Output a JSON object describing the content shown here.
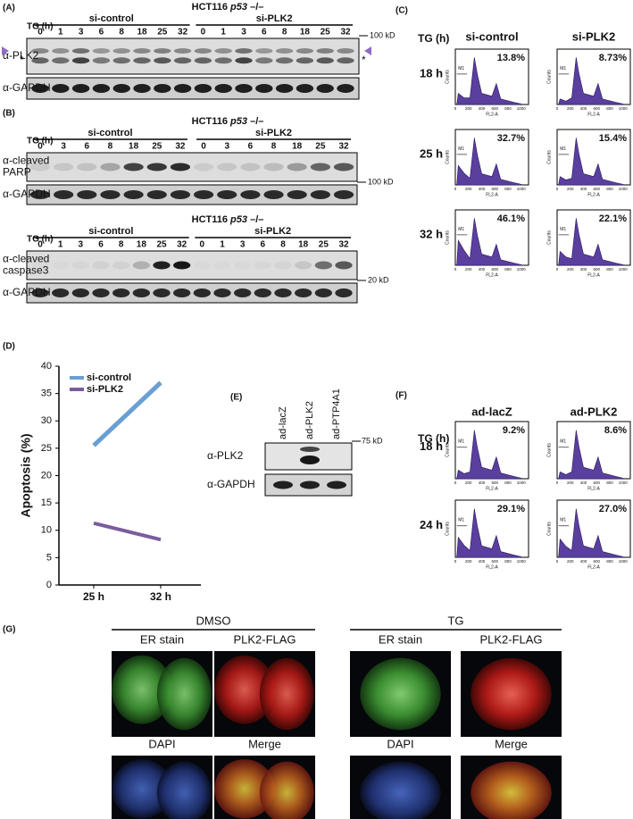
{
  "panels": {
    "A": {
      "label": "(A)",
      "title": [
        "HCT116 ",
        "p53",
        " –/–"
      ],
      "tg": "TG (h)",
      "groups": [
        "si-control",
        "si-PLK2"
      ],
      "lanes": [
        "0",
        "1",
        "3",
        "6",
        "8",
        "18",
        "25",
        "32"
      ],
      "rows": [
        [
          "α-PLK2"
        ],
        [
          "α-GAPDH"
        ]
      ],
      "marker": "100 kD",
      "asterisk": "*"
    },
    "B": {
      "label": "(B)",
      "blots": [
        {
          "title": [
            "HCT116 ",
            "p53",
            " –/–"
          ],
          "tg": "TG (h)",
          "groups": [
            "si-control",
            "si-PLK2"
          ],
          "lanes": [
            "0",
            "3",
            "6",
            "8",
            "18",
            "25",
            "32"
          ],
          "rows": [
            [
              "α-cleaved",
              "PARP"
            ],
            [
              "α-GAPDH"
            ]
          ],
          "marker": "100 kD"
        },
        {
          "title": [
            "HCT116 ",
            "p53",
            " –/–"
          ],
          "tg": "TG (h)",
          "groups": [
            "si-control",
            "si-PLK2"
          ],
          "lanes": [
            "0",
            "1",
            "3",
            "6",
            "8",
            "18",
            "25",
            "32"
          ],
          "rows": [
            [
              "α-cleaved",
              "caspase3"
            ],
            [
              "α-GAPDH"
            ]
          ],
          "marker": "20 kD"
        }
      ]
    },
    "C": {
      "label": "(C)",
      "tg": "TG (h)",
      "columns": [
        "si-control",
        "si-PLK2"
      ],
      "rows": [
        {
          "time": "18 h",
          "percents": [
            "13.8%",
            "8.73%"
          ]
        },
        {
          "time": "25 h",
          "percents": [
            "32.7%",
            "15.4%"
          ]
        },
        {
          "time": "32 h",
          "percents": [
            "46.1%",
            "22.1%"
          ]
        }
      ]
    },
    "E": {
      "label": "(E)",
      "lanes": [
        "ad-lacZ",
        "ad-PLK2",
        "ad-PTP4A1"
      ],
      "rows": [
        "α-PLK2",
        "α-GAPDH"
      ],
      "marker": "75 kD"
    },
    "F": {
      "label": "(F)",
      "tg": "TG (h)",
      "columns": [
        "ad-lacZ",
        "ad-PLK2"
      ],
      "rows": [
        {
          "time": "18 h",
          "percents": [
            "9.2%",
            "8.6%"
          ]
        },
        {
          "time": "24 h",
          "percents": [
            "29.1%",
            "27.0%"
          ]
        }
      ]
    },
    "G": {
      "label": "(G)",
      "conditions": [
        {
          "name": "DMSO",
          "images": [
            "ER stain",
            "PLK2-FLAG",
            "DAPI",
            "Merge"
          ]
        },
        {
          "name": "TG",
          "images": [
            "ER stain",
            "PLK2-FLAG",
            "DAPI",
            "Merge"
          ]
        }
      ]
    }
  },
  "histogram_axes": {
    "y": "Counts",
    "x": "FL2-A",
    "gate": "M1",
    "xticks": [
      "0",
      "200",
      "400",
      "600",
      "800",
      "1000"
    ]
  },
  "chart_data": {
    "type": "line",
    "label": "(D)",
    "y_label": "Apoptosis (%)",
    "categories": [
      "25 h",
      "32 h"
    ],
    "series": [
      {
        "name": "si-control",
        "color": "#6a9fd4",
        "values": [
          25.5,
          37
        ]
      },
      {
        "name": "si-PLK2",
        "color": "#7a5c9e",
        "values": [
          11.3,
          8.3
        ]
      }
    ],
    "ylim": [
      0,
      40
    ],
    "yticks": [
      0,
      5,
      10,
      15,
      20,
      25,
      30,
      35,
      40
    ],
    "legend": "upper left"
  }
}
